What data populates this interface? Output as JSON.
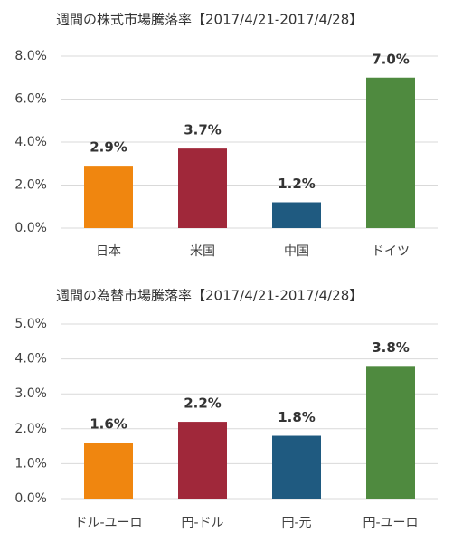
{
  "chart_data": [
    {
      "type": "bar",
      "title": "週間の株式市場騰落率【2017/4/21-2017/4/28】",
      "categories": [
        "日本",
        "米国",
        "中国",
        "ドイツ"
      ],
      "values": [
        2.9,
        3.7,
        1.2,
        7.0
      ],
      "value_labels": [
        "2.9%",
        "3.7%",
        "1.2%",
        "7.0%"
      ],
      "colors": [
        "#f0860f",
        "#a0283a",
        "#1f5a80",
        "#4f8a3f"
      ],
      "ylim": [
        0,
        8
      ],
      "yticks": [
        {
          "value": 0,
          "label": "0.0%"
        },
        {
          "value": 2,
          "label": "2.0%"
        },
        {
          "value": 4,
          "label": "4.0%"
        },
        {
          "value": 6,
          "label": "6.0%"
        },
        {
          "value": 8,
          "label": "8.0%"
        }
      ],
      "grid": true
    },
    {
      "type": "bar",
      "title": "週間の為替市場騰落率【2017/4/21-2017/4/28】",
      "categories": [
        "ドル-ユーロ",
        "円-ドル",
        "円-元",
        "円-ユーロ"
      ],
      "values": [
        1.6,
        2.2,
        1.8,
        3.8
      ],
      "value_labels": [
        "1.6%",
        "2.2%",
        "1.8%",
        "3.8%"
      ],
      "colors": [
        "#f0860f",
        "#a0283a",
        "#1f5a80",
        "#4f8a3f"
      ],
      "ylim": [
        0,
        5
      ],
      "yticks": [
        {
          "value": 0,
          "label": "0.0%"
        },
        {
          "value": 1,
          "label": "1.0%"
        },
        {
          "value": 2,
          "label": "2.0%"
        },
        {
          "value": 3,
          "label": "3.0%"
        },
        {
          "value": 4,
          "label": "4.0%"
        },
        {
          "value": 5,
          "label": "5.0%"
        }
      ],
      "grid": true
    }
  ]
}
